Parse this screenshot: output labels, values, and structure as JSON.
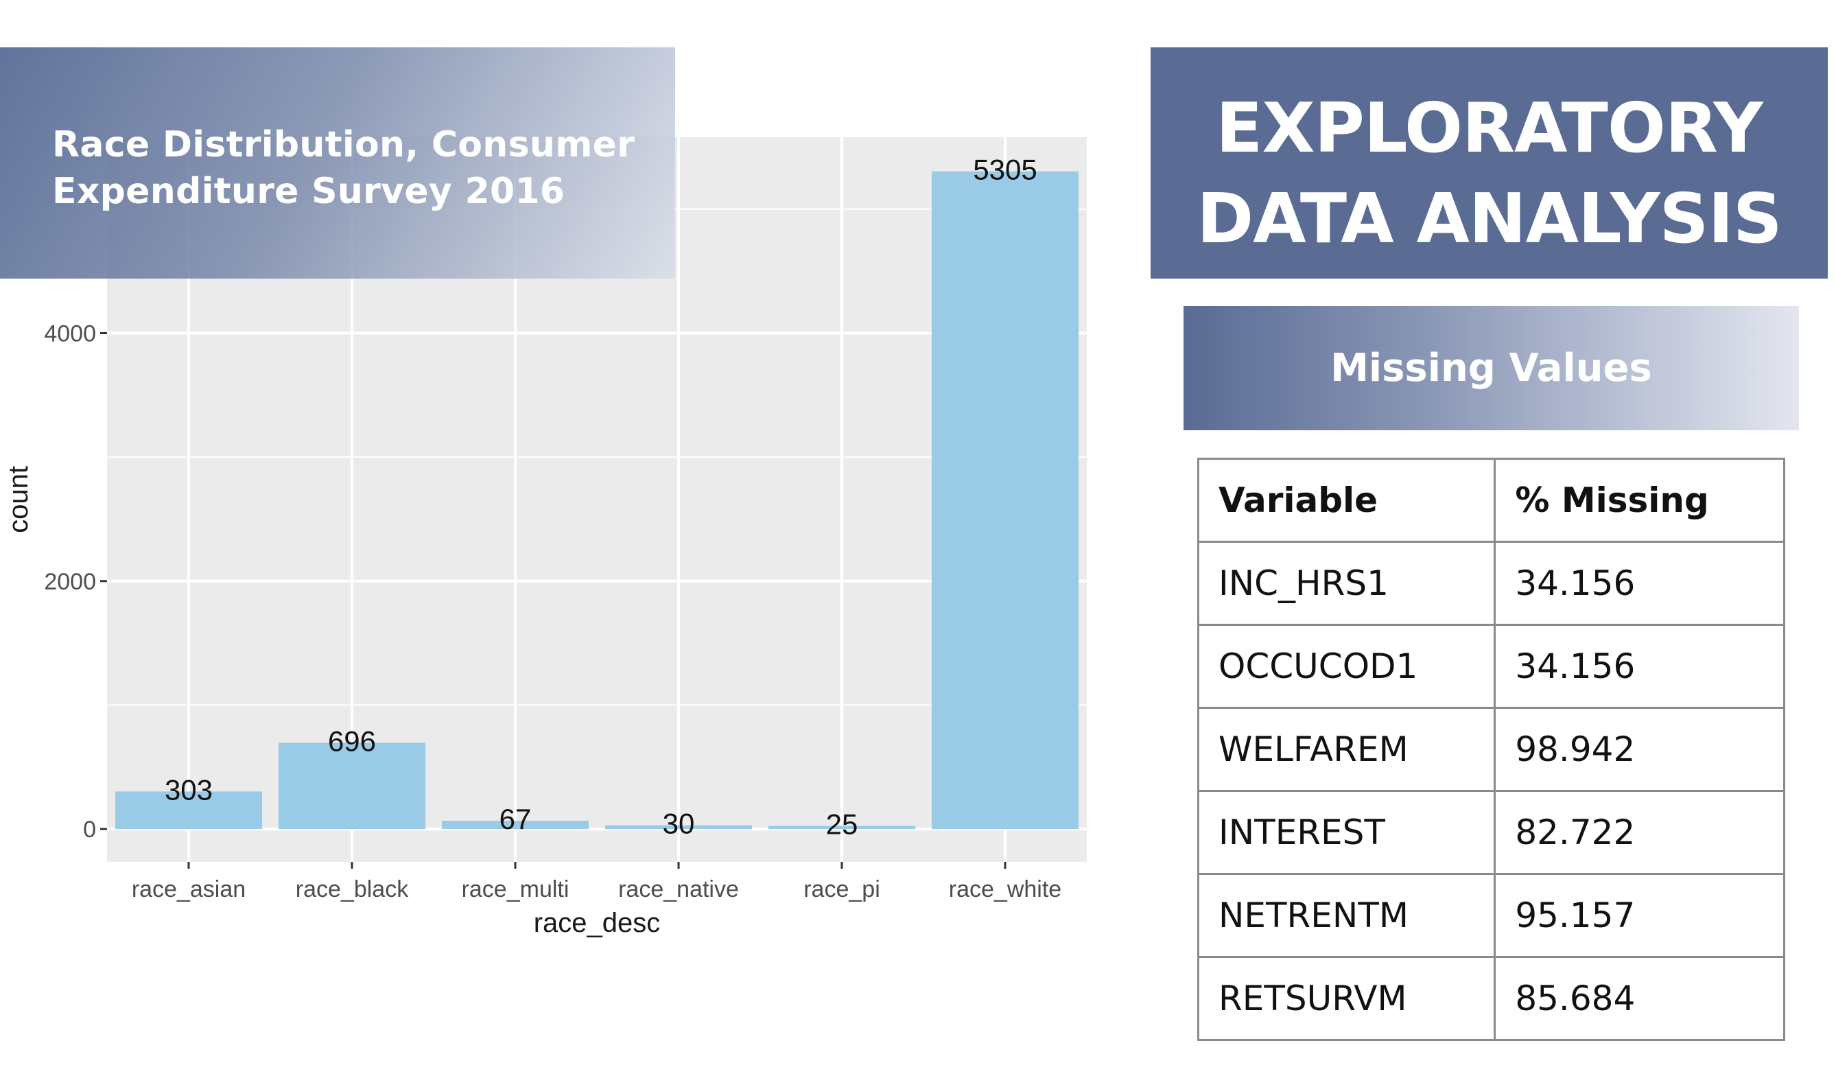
{
  "slide": {
    "title_lines": [
      "EXPLORATORY",
      "DATA ANALYSIS"
    ],
    "chart_banner_lines": [
      "Race Distribution, Consumer",
      "Expenditure Survey 2016"
    ],
    "section_title": "Missing Values"
  },
  "missing_table": {
    "headers": [
      "Variable",
      "%  Missing"
    ],
    "rows": [
      {
        "variable": "INC_HRS1",
        "missing": "34.156"
      },
      {
        "variable": "OCCUCOD1",
        "missing": "34.156"
      },
      {
        "variable": "WELFAREM",
        "missing": "98.942"
      },
      {
        "variable": "INTEREST",
        "missing": "82.722"
      },
      {
        "variable": "NETRENTM",
        "missing": "95.157"
      },
      {
        "variable": "RETSURVM",
        "missing": "85.684"
      }
    ]
  },
  "colors": {
    "bar": "#99cbe6",
    "panel": "#ebebeb",
    "banner": "#5a6b94"
  },
  "chart_data": {
    "type": "bar",
    "categories": [
      "race_asian",
      "race_black",
      "race_multi",
      "race_native",
      "race_pi",
      "race_white"
    ],
    "values": [
      303,
      696,
      67,
      30,
      25,
      5305
    ],
    "data_labels": [
      "303",
      "696",
      "67",
      "30",
      "25",
      "5305"
    ],
    "xlabel": "race_desc",
    "ylabel": "count",
    "ylim": [
      -265,
      5580
    ],
    "yticks": [
      0,
      2000,
      4000
    ],
    "ytick_labels": [
      "0",
      "2000",
      "4000"
    ],
    "grid": true
  }
}
